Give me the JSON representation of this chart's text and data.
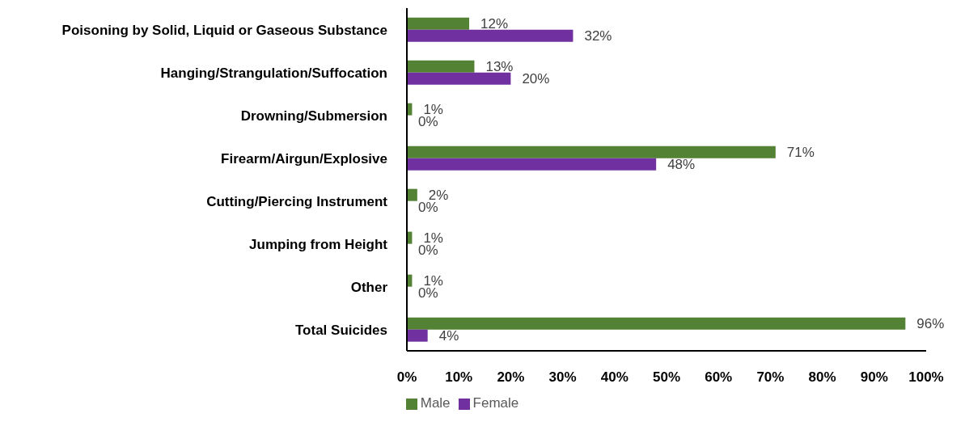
{
  "chart_data": {
    "type": "bar",
    "orientation": "horizontal",
    "categories": [
      "Poisoning by Solid, Liquid or Gaseous Substance",
      "Hanging/Strangulation/Suffocation",
      "Drowning/Submersion",
      "Firearm/Airgun/Explosive",
      "Cutting/Piercing Instrument",
      "Jumping from Height",
      "Other",
      "Total Suicides"
    ],
    "series": [
      {
        "name": "Male",
        "color": "#548235",
        "values": [
          12,
          13,
          1,
          71,
          2,
          1,
          1,
          96
        ],
        "value_labels": [
          "12%",
          "13%",
          "1%",
          "71%",
          "2%",
          "1%",
          "1%",
          "96%"
        ]
      },
      {
        "name": "Female",
        "color": "#7030a0",
        "values": [
          32,
          20,
          0,
          48,
          0,
          0,
          0,
          4
        ],
        "value_labels": [
          "32%",
          "20%",
          "0%",
          "48%",
          "0%",
          "0%",
          "0%",
          "4%"
        ]
      }
    ],
    "xlim": [
      0,
      100
    ],
    "xticks": [
      {
        "value": 0,
        "label": "0%"
      },
      {
        "value": 10,
        "label": "10%"
      },
      {
        "value": 20,
        "label": "20%"
      },
      {
        "value": 30,
        "label": "30%"
      },
      {
        "value": 40,
        "label": "40%"
      },
      {
        "value": 50,
        "label": "50%"
      },
      {
        "value": 60,
        "label": "60%"
      },
      {
        "value": 70,
        "label": "70%"
      },
      {
        "value": 80,
        "label": "80%"
      },
      {
        "value": 90,
        "label": "90%"
      },
      {
        "value": 100,
        "label": "100%"
      }
    ],
    "grid": false,
    "legend": "bottom"
  }
}
